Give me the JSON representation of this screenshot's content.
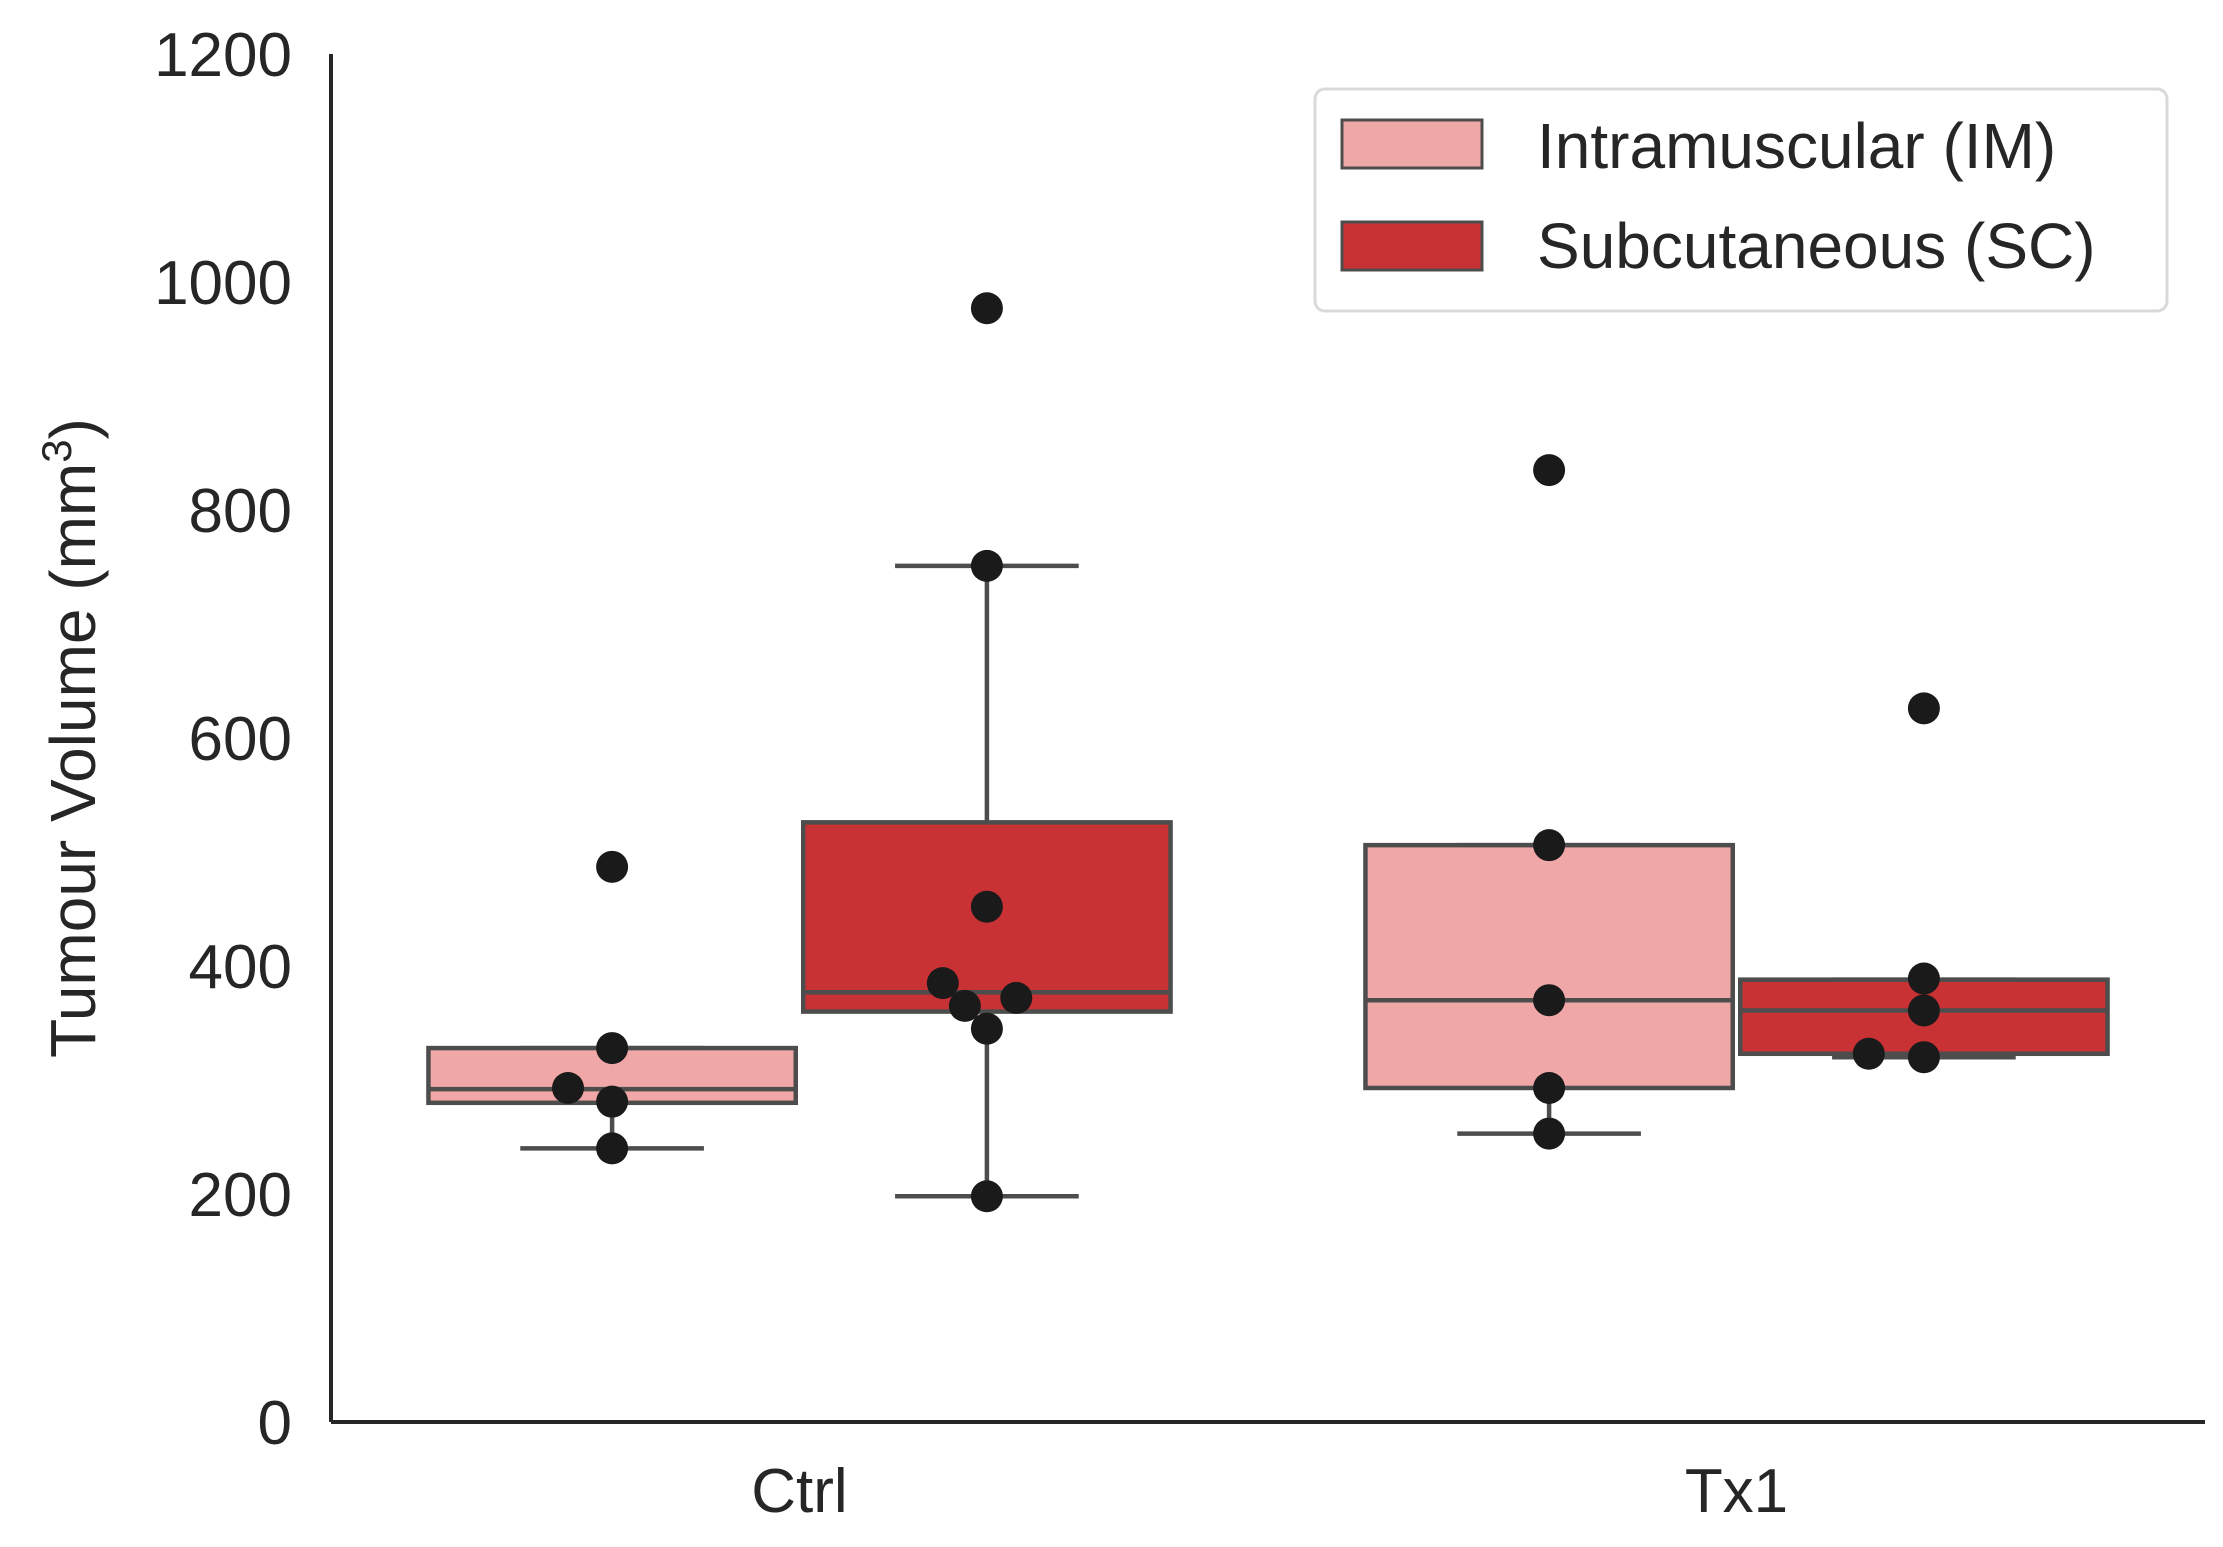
{
  "chart_data": {
    "type": "box",
    "title": "",
    "xlabel": "",
    "ylabel": "Tumour Volume (mm",
    "ylabel_superscript": "3",
    "ylabel_close": ")",
    "ylim": [
      0,
      1200
    ],
    "yticks": [
      0,
      200,
      400,
      600,
      800,
      1000,
      1200
    ],
    "ytick_labels": [
      "0",
      "200",
      "400",
      "600",
      "800",
      "1000",
      "1200"
    ],
    "categories": [
      "Ctrl",
      "Tx1"
    ],
    "grid": false,
    "legend_position": "top-right",
    "series": [
      {
        "name": "Intramuscular (IM)",
        "color": "#f0a7a7",
        "boxes": [
          {
            "category": "Ctrl",
            "whisker_low": 240,
            "q1": 280,
            "median": 292,
            "q3": 328,
            "whisker_high": 328
          },
          {
            "category": "Tx1",
            "whisker_low": 253,
            "q1": 293,
            "median": 370,
            "q3": 506,
            "whisker_high": 506
          }
        ],
        "points": [
          {
            "category": "Ctrl",
            "values": [
              487,
              328,
              293,
              281,
              240
            ],
            "jitter": [
              0,
              0,
              -0.12,
              0,
              0
            ]
          },
          {
            "category": "Tx1",
            "values": [
              835,
              506,
              370,
              293,
              253
            ],
            "jitter": [
              0,
              0,
              0,
              0,
              0
            ]
          }
        ]
      },
      {
        "name": "Subcutaneous (SC)",
        "color": "#c93234",
        "boxes": [
          {
            "category": "Ctrl",
            "whisker_low": 198,
            "q1": 360,
            "median": 377,
            "q3": 526,
            "whisker_high": 751
          },
          {
            "category": "Tx1",
            "whisker_low": 320,
            "q1": 323,
            "median": 361,
            "q3": 388,
            "whisker_high": 388
          }
        ],
        "points": [
          {
            "category": "Ctrl",
            "values": [
              977,
              751,
              452,
              385,
              372,
              365,
              345,
              198
            ],
            "jitter": [
              0,
              0,
              0,
              -0.12,
              0.08,
              -0.06,
              0,
              0
            ]
          },
          {
            "category": "Tx1",
            "values": [
              626,
              389,
              361,
              323,
              320
            ],
            "jitter": [
              0,
              0,
              0,
              -0.15,
              0
            ]
          }
        ]
      }
    ]
  }
}
